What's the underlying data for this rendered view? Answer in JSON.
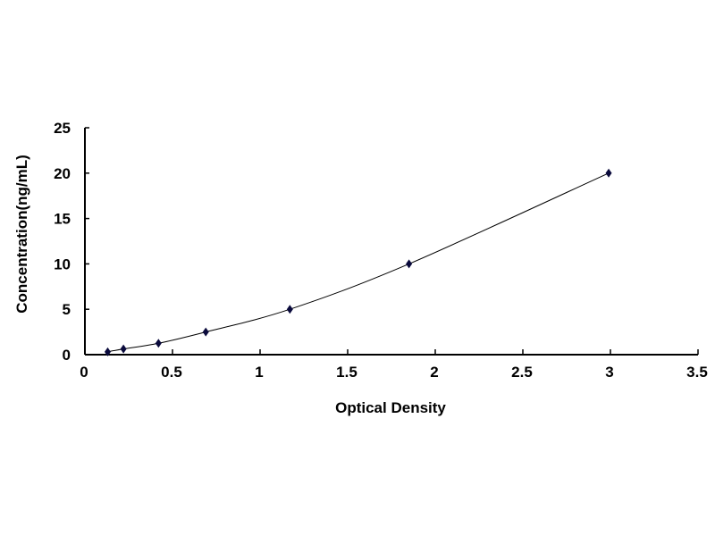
{
  "chart_data": {
    "type": "scatter",
    "title": "",
    "xlabel": "Optical Density",
    "ylabel": "Concentration(ng/mL)",
    "xlim": [
      0,
      3.5
    ],
    "ylim": [
      0,
      25
    ],
    "xticks": [
      "0",
      "0.5",
      "1",
      "1.5",
      "2",
      "2.5",
      "3",
      "3.5"
    ],
    "yticks": [
      "0",
      "5",
      "10",
      "15",
      "20",
      "25"
    ],
    "grid": false,
    "legend": "none",
    "smooth_line": true,
    "marker": "diamond",
    "color": "#0a0a3c",
    "series": [
      {
        "x": [
          0.13,
          0.22,
          0.42,
          0.69,
          1.17,
          1.85,
          2.99
        ],
        "y": [
          0.312,
          0.625,
          1.25,
          2.5,
          5,
          10,
          20
        ]
      }
    ]
  }
}
